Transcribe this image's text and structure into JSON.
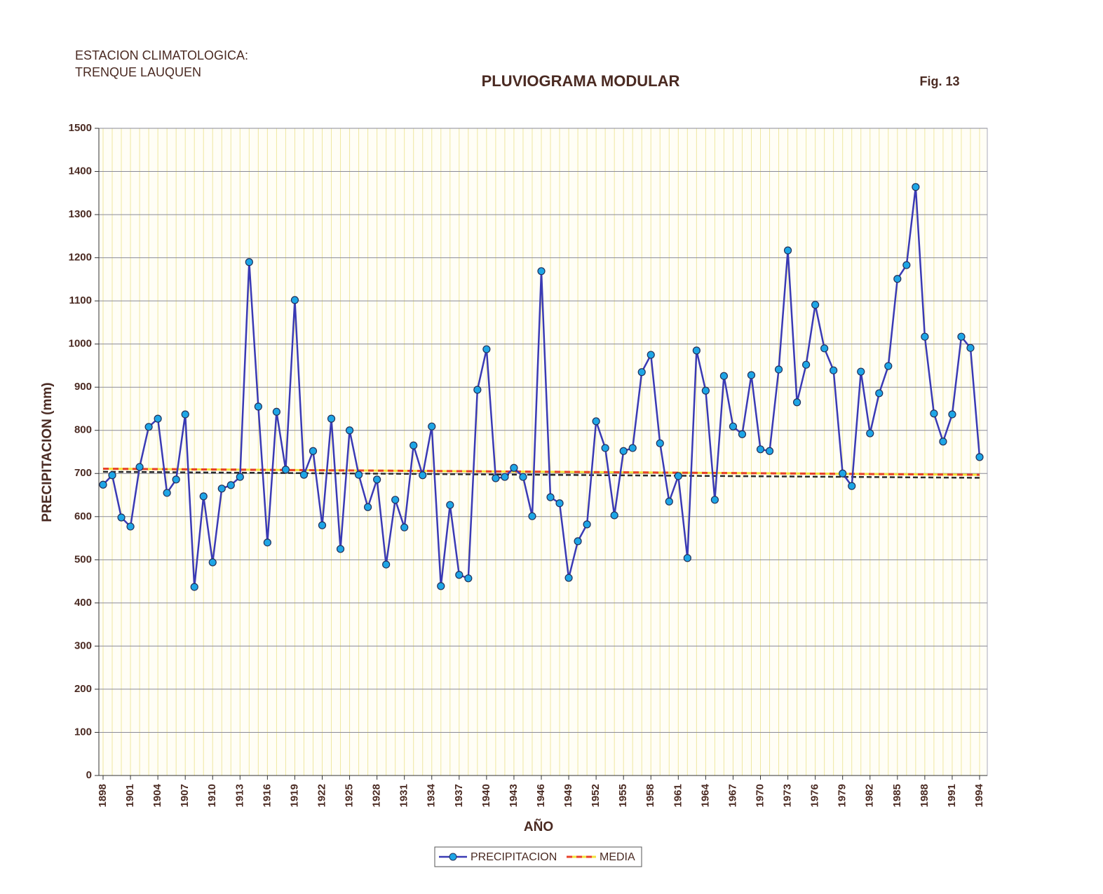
{
  "chart_data": {
    "type": "line",
    "station": [
      "ESTACION CLIMATOLOGICA:",
      "TRENQUE LAUQUEN"
    ],
    "title": "PLUVIOGRAMA MODULAR",
    "figure": "Fig. 13",
    "ylabel": "PRECIPITACION (mm)",
    "xlabel": "AÑO",
    "x": [
      1898,
      1899,
      1900,
      1901,
      1902,
      1903,
      1904,
      1905,
      1906,
      1907,
      1908,
      1909,
      1910,
      1911,
      1912,
      1913,
      1914,
      1915,
      1916,
      1917,
      1918,
      1919,
      1920,
      1921,
      1922,
      1923,
      1924,
      1925,
      1926,
      1927,
      1928,
      1929,
      1930,
      1931,
      1932,
      1933,
      1934,
      1935,
      1936,
      1937,
      1938,
      1939,
      1940,
      1941,
      1942,
      1943,
      1944,
      1945,
      1946,
      1947,
      1948,
      1949,
      1950,
      1951,
      1952,
      1953,
      1954,
      1955,
      1956,
      1957,
      1958,
      1959,
      1960,
      1961,
      1962,
      1963,
      1964,
      1965,
      1966,
      1967,
      1968,
      1969,
      1970,
      1971,
      1972,
      1973,
      1974,
      1975,
      1976,
      1977,
      1978,
      1979,
      1980,
      1981,
      1982,
      1983,
      1984,
      1985,
      1986,
      1987,
      1988,
      1989,
      1990,
      1991,
      1992,
      1993,
      1994
    ],
    "series": [
      {
        "name": "PRECIPITACION",
        "color": "#3a3ab4",
        "marker_color": "#1ea6e6",
        "values": [
          674,
          696,
          598,
          577,
          715,
          808,
          827,
          655,
          686,
          837,
          437,
          647,
          494,
          665,
          673,
          692,
          1190,
          855,
          540,
          843,
          709,
          1102,
          697,
          752,
          580,
          827,
          525,
          800,
          697,
          622,
          686,
          489,
          639,
          575,
          765,
          696,
          809,
          439,
          627,
          465,
          457,
          894,
          988,
          689,
          692,
          713,
          692,
          601,
          1169,
          645,
          631,
          458,
          543,
          582,
          821,
          759,
          603,
          752,
          759,
          935,
          975,
          770,
          635,
          694,
          504,
          985,
          892,
          639,
          926,
          809,
          791,
          928,
          756,
          752,
          941,
          1217,
          865,
          952,
          1091,
          990,
          939,
          700,
          671,
          936,
          793,
          886,
          949,
          1151,
          1183,
          1364,
          1017,
          839,
          774,
          837,
          1017,
          991,
          738
        ]
      }
    ],
    "media": {
      "name": "MEDIA",
      "x": [
        1898,
        1994
      ],
      "values": [
        711,
        697
      ],
      "color": "#e8402a",
      "color2": "#f2e23a"
    },
    "trend": {
      "x": [
        1898,
        1994
      ],
      "values": [
        704,
        690
      ],
      "color": "#2a2a2a"
    },
    "xlim": [
      1898,
      1994
    ],
    "xticks": [
      1898,
      1901,
      1904,
      1907,
      1910,
      1913,
      1916,
      1919,
      1922,
      1925,
      1928,
      1931,
      1934,
      1937,
      1940,
      1943,
      1946,
      1949,
      1952,
      1955,
      1958,
      1961,
      1964,
      1967,
      1970,
      1973,
      1976,
      1979,
      1982,
      1985,
      1988,
      1991,
      1994
    ],
    "ylim": [
      0,
      1500
    ],
    "yticks": [
      0,
      100,
      200,
      300,
      400,
      500,
      600,
      700,
      800,
      900,
      1000,
      1100,
      1200,
      1300,
      1400,
      1500
    ],
    "grid": true
  }
}
